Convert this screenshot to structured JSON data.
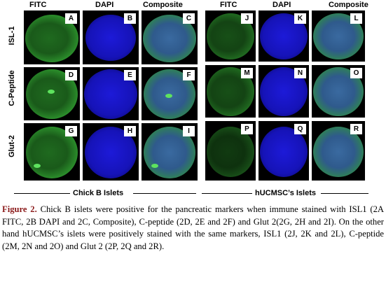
{
  "columns": {
    "left": [
      "FITC",
      "DAPI",
      "Composite"
    ],
    "right": [
      "FITC",
      "DAPI",
      "Composite"
    ]
  },
  "rows": [
    "ISL-1",
    "C-Peptide",
    "Glut-2"
  ],
  "panels": {
    "left": [
      [
        "A",
        "B",
        "C"
      ],
      [
        "D",
        "E",
        "F"
      ],
      [
        "G",
        "H",
        "I"
      ]
    ],
    "right": [
      [
        "J",
        "K",
        "L"
      ],
      [
        "M",
        "N",
        "O"
      ],
      [
        "P",
        "Q",
        "R"
      ]
    ]
  },
  "groups": {
    "left": "Chick B Islets",
    "right": "hUCMSC’s Islets"
  },
  "caption": {
    "label": "Figure 2.",
    "text": "Chick B islets were positive  for the pancreatic markers when immune stained with ISL1 (2A FITC, 2B DAPI and 2C, Composite), C-peptide (2D, 2E and 2F) and Glut 2(2G, 2H and 2I). On the other hand hUCMSC’s islets were positively stained with the same markers, ISL1 (2J, 2K and 2L), C-peptide (2M, 2N and 2O) and Glut 2 (2P, 2Q and 2R)."
  }
}
